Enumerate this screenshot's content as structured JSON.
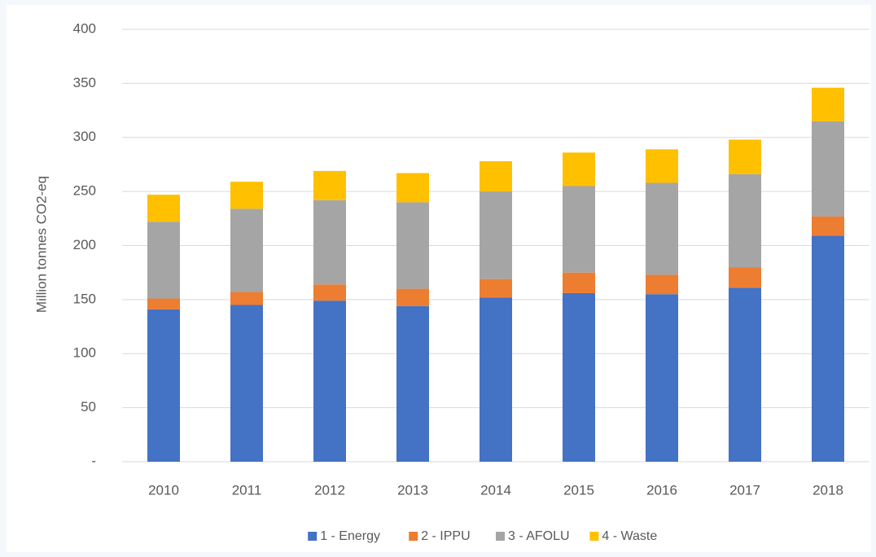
{
  "chart_data": {
    "type": "stacked_bar",
    "y_label": "Million tonnes CO2-eq",
    "categories": [
      "2010",
      "2011",
      "2012",
      "2013",
      "2014",
      "2015",
      "2016",
      "2017",
      "2018"
    ],
    "series": [
      {
        "name": "1 - Energy",
        "color": "#4472c4",
        "values": [
          141,
          145,
          149,
          144,
          152,
          156,
          155,
          161,
          209
        ]
      },
      {
        "name": "2 - IPPU",
        "color": "#ed7d31",
        "values": [
          10,
          12,
          15,
          16,
          17,
          19,
          18,
          19,
          18
        ]
      },
      {
        "name": "3 - AFOLU",
        "color": "#a5a5a5",
        "values": [
          71,
          77,
          78,
          80,
          81,
          80,
          85,
          86,
          88
        ]
      },
      {
        "name": "4 - Waste",
        "color": "#ffc000",
        "values": [
          25,
          25,
          27,
          27,
          28,
          31,
          31,
          32,
          31
        ]
      }
    ],
    "ylim": [
      0,
      400
    ],
    "yticks": [
      {
        "value": 0,
        "label": "-"
      },
      50,
      100,
      150,
      200,
      250,
      300,
      350,
      400
    ],
    "grid": true,
    "legend": "bottom"
  }
}
